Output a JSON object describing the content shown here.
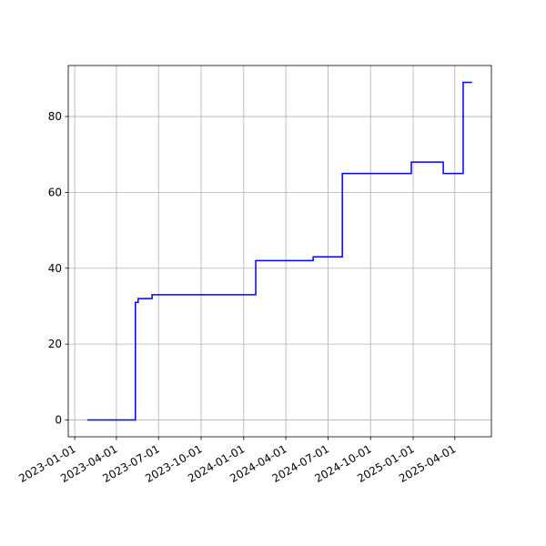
{
  "chart_data": {
    "type": "line",
    "drawstyle": "steps-post",
    "x": [
      "2023-01-28",
      "2023-05-12",
      "2023-05-18",
      "2023-06-17",
      "2024-01-27",
      "2024-05-30",
      "2024-08-01",
      "2024-12-28",
      "2025-03-07",
      "2025-04-19",
      "2025-05-08"
    ],
    "series": [
      {
        "color": "#0000ff",
        "values": [
          0,
          31,
          32,
          33,
          42,
          43,
          65,
          68,
          65,
          89,
          89
        ]
      }
    ],
    "xlim": [
      "2022-12-18",
      "2025-06-19"
    ],
    "xticks": [
      "2023-01-01",
      "2023-04-01",
      "2023-07-01",
      "2023-10-01",
      "2024-01-01",
      "2024-04-01",
      "2024-07-01",
      "2024-10-01",
      "2025-01-01",
      "2025-04-01"
    ],
    "ylim": [
      -4.45,
      93.45
    ],
    "yticks": [
      0,
      20,
      40,
      60,
      80
    ],
    "grid": true
  }
}
